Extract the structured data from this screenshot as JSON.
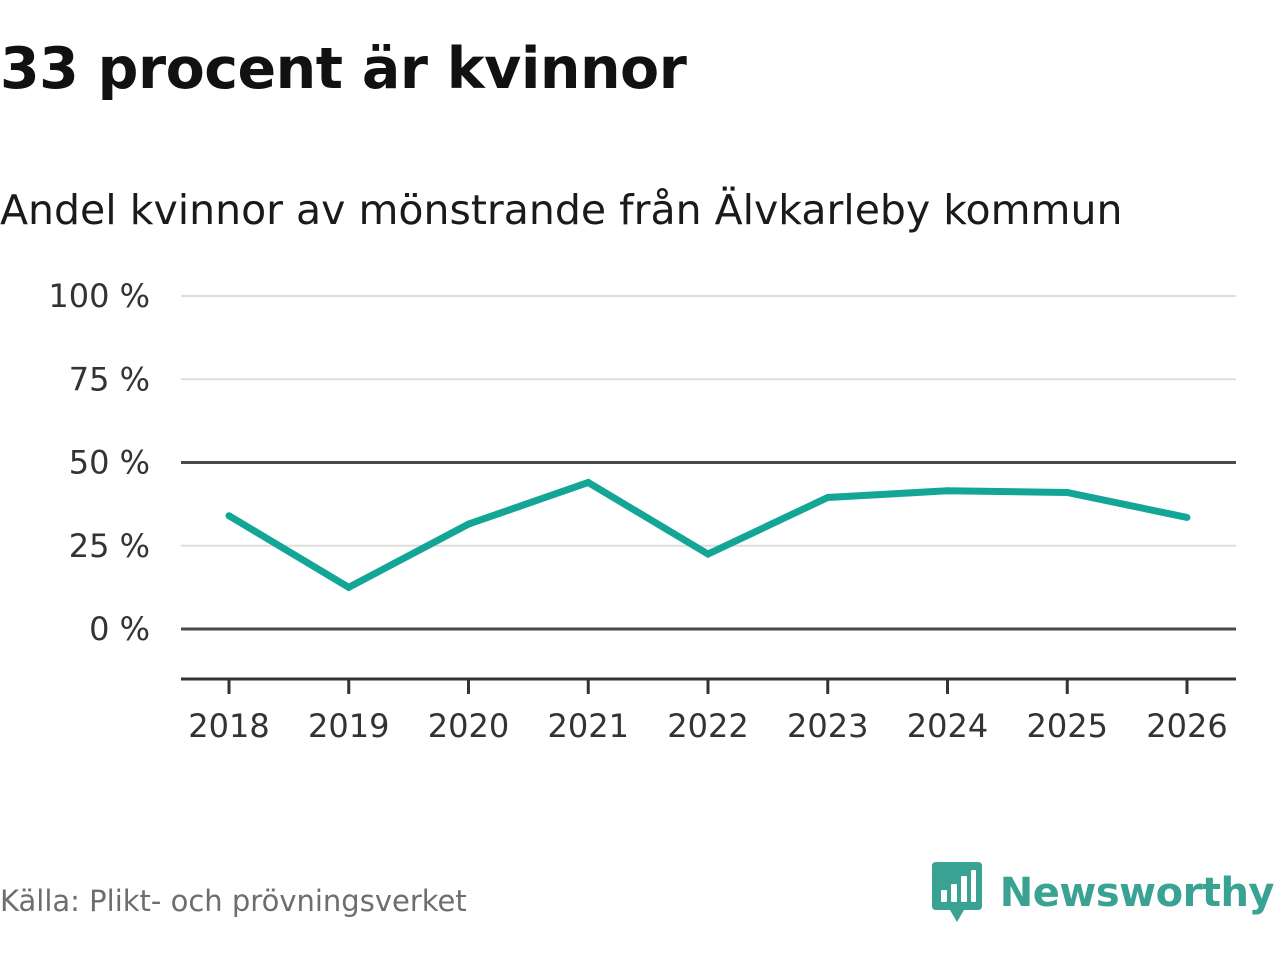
{
  "headline": "33 procent är kvinnor",
  "subtitle": "Andel kvinnor av mönstrande från Älvkarleby kommun",
  "source": "Källa: Plikt- och prövningsverket",
  "brand": {
    "name": "Newsworthy",
    "icon": "newsworthy-logo-icon",
    "color": "#3aa293"
  },
  "chart_data": {
    "type": "line",
    "title": "Andel kvinnor av mönstrande från Älvkarleby kommun",
    "xlabel": "",
    "ylabel": "",
    "categories": [
      "2018",
      "2019",
      "2020",
      "2021",
      "2022",
      "2023",
      "2024",
      "2025",
      "2026"
    ],
    "series": [
      {
        "name": "Andel kvinnor",
        "color": "#13a697",
        "values": [
          34,
          12.5,
          31.5,
          44,
          22.5,
          39.5,
          41.5,
          41,
          33.5
        ]
      }
    ],
    "ylim": [
      -15,
      100
    ],
    "yticks": [
      {
        "value": 100,
        "label": "100 %"
      },
      {
        "value": 75,
        "label": "75 %"
      },
      {
        "value": 50,
        "label": "50 %"
      },
      {
        "value": 25,
        "label": "25 %"
      },
      {
        "value": 0,
        "label": "0 %"
      }
    ],
    "emphasized_gridlines": [
      0,
      50
    ],
    "grid": true,
    "legend": "none"
  }
}
